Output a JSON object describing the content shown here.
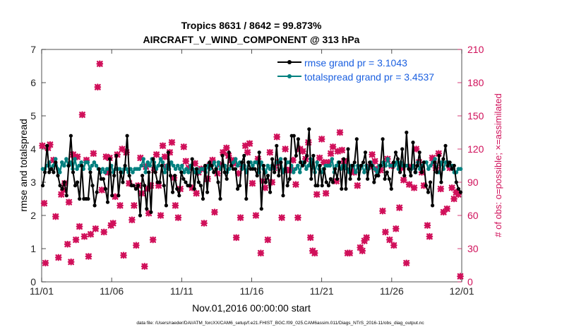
{
  "chart_data": {
    "type": "line",
    "title_line1": "Tropics 8631 / 8642 = 99.873%",
    "title_line2": "AIRCRAFT_V_WIND_COMPONENT @ 313 hPa",
    "xlabel": "Nov.01,2016 00:00:00 start",
    "ylabel_left": "rmse and totalspread",
    "ylabel_right": "# of obs: o=possible; ×=assimilated",
    "footer": "data file: /Users/raeder/DAI/ATM_forcXX/CAM6_setup/f.e21.FHIST_BGC.f09_025.CAM6assim.011/Diags_NTrS_2016-11/obs_diag_output.nc",
    "x_tick_labels": [
      "11/01",
      "11/06",
      "11/11",
      "11/16",
      "11/21",
      "11/26",
      "12/01"
    ],
    "x_tick_days": [
      0,
      5,
      10,
      15,
      20,
      25,
      30
    ],
    "xlim_days": [
      0,
      30
    ],
    "ylim_left": [
      0,
      7
    ],
    "y_left_ticks": [
      0,
      1,
      2,
      3,
      4,
      5,
      6,
      7
    ],
    "ylim_right": [
      0,
      210
    ],
    "y_right_ticks": [
      0,
      30,
      60,
      90,
      120,
      150,
      180,
      210
    ],
    "colors": {
      "rmse": "#000000",
      "spread": "#00807f",
      "obs": "#d0105a",
      "legend_text": "#1a5fe0"
    },
    "series": [
      {
        "name": "rmse grand pr = 3.1043",
        "axis": "left",
        "values": [
          2.9,
          3.3,
          4.1,
          3.3,
          3.4,
          3.3,
          3.6,
          3.2,
          2.9,
          2.8,
          3.0,
          2.6,
          3.5,
          4.4,
          3.3,
          2.9,
          3.0,
          2.5,
          3.5,
          2.5,
          2.5,
          2.5,
          3.3,
          2.9,
          2.3,
          2.7,
          3.4,
          3.1,
          3.1,
          2.8,
          2.4,
          3.7,
          2.6,
          3.2,
          3.8,
          2.6,
          3.3,
          3.0,
          3.5,
          4.4,
          3.2,
          2.9,
          2.9,
          2.8,
          2.9,
          2.0,
          3.2,
          2.9,
          2.2,
          3.3,
          2.1,
          3.7,
          3.3,
          3.0,
          3.0,
          3.5,
          2.9,
          2.3,
          3.9,
          3.2,
          2.7,
          3.2,
          2.8,
          2.6,
          3.3,
          3.1,
          3.0,
          2.9,
          2.9,
          3.7,
          2.8,
          3.4,
          3.0,
          2.9,
          2.5,
          3.5,
          2.7,
          3.6,
          3.5,
          3.3,
          3.4,
          3.0,
          2.5,
          3.8,
          3.3,
          3.1,
          3.9,
          3.5,
          3.4,
          3.4,
          2.8,
          2.9,
          3.6,
          3.8,
          2.5,
          3.6,
          3.4,
          3.4,
          3.4,
          3.2,
          3.9,
          2.2,
          3.5,
          3.0,
          3.2,
          2.7,
          3.7,
          3.3,
          4.1,
          3.2,
          3.6,
          2.6,
          3.7,
          2.9,
          3.1,
          4.4,
          4.4,
          3.8,
          4.3,
          3.6,
          3.5,
          3.6,
          3.8,
          4.6,
          3.1,
          3.8,
          2.9,
          2.9,
          3.5,
          2.9,
          3.4,
          3.0,
          2.9,
          3.1,
          3.0,
          3.4,
          3.1,
          3.6,
          2.8,
          3.7,
          2.8,
          4.0,
          3.1,
          3.5,
          3.6,
          4.3,
          3.1,
          3.5,
          3.6,
          3.9,
          3.1,
          3.6,
          3.5,
          3.0,
          3.2,
          3.2,
          3.5,
          4.3,
          3.1,
          3.3,
          3.1,
          2.8,
          3.6,
          3.9,
          3.7,
          3.3,
          4.0,
          3.2,
          4.5,
          3.4,
          3.2,
          4.2,
          3.3,
          3.5,
          3.9,
          3.3,
          3.6,
          2.9,
          2.7,
          3.0,
          2.3,
          3.6,
          3.3,
          3.8,
          3.0,
          3.7,
          4.1,
          3.5,
          3.6,
          3.4,
          3.5,
          3.0,
          2.8,
          2.7
        ]
      },
      {
        "name": "totalspread grand pr = 3.4537",
        "axis": "left",
        "values": [
          3.4,
          3.4,
          3.5,
          3.6,
          3.4,
          3.5,
          3.7,
          3.4,
          3.3,
          3.6,
          3.5,
          3.7,
          3.5,
          3.6,
          3.4,
          3.7,
          3.4,
          3.5,
          3.6,
          3.4,
          3.6,
          3.6,
          3.4,
          3.5,
          3.6,
          3.5,
          3.4,
          3.3,
          3.4,
          3.3,
          3.4,
          3.4,
          3.5,
          3.3,
          3.4,
          3.4,
          3.4,
          3.3,
          3.4,
          3.4,
          3.3,
          3.4,
          3.3,
          3.4,
          3.4,
          3.4,
          3.5,
          3.7,
          3.3,
          3.6,
          3.5,
          3.7,
          3.6,
          3.4,
          3.5,
          3.7,
          3.6,
          3.3,
          3.5,
          3.4,
          3.6,
          3.5,
          3.4,
          3.5,
          3.4,
          3.5,
          3.3,
          3.4,
          3.3,
          3.5,
          3.4,
          3.3,
          3.4,
          3.3,
          3.4,
          3.4,
          3.3,
          3.5,
          3.4,
          3.5,
          3.6,
          3.4,
          3.6,
          3.4,
          3.5,
          3.5,
          3.3,
          3.4,
          3.5,
          3.6,
          3.7,
          3.5,
          3.6,
          3.4,
          3.5,
          3.3,
          3.6,
          3.6,
          3.5,
          3.6,
          3.6,
          3.3,
          3.6,
          3.4,
          3.3,
          3.5,
          3.4,
          3.5,
          3.4,
          3.6,
          3.6,
          3.7,
          3.3,
          3.4,
          3.6,
          3.6,
          3.5,
          3.3,
          3.4,
          3.5,
          3.3,
          3.6,
          3.6,
          3.4,
          3.5,
          3.7,
          3.5,
          3.3,
          3.6,
          3.4,
          3.3,
          3.4,
          3.5,
          3.5,
          3.5,
          3.7,
          3.3,
          3.5,
          3.6,
          3.4,
          3.5,
          3.5,
          3.4,
          3.3,
          3.5,
          3.5,
          3.3,
          3.5,
          3.4,
          3.5,
          3.3,
          3.5,
          3.4,
          3.6,
          3.5,
          3.4,
          3.3,
          3.5,
          3.5,
          3.6,
          3.5,
          3.7,
          3.5,
          3.5,
          3.5,
          3.6,
          3.4,
          3.6,
          3.5,
          3.5,
          3.5,
          3.4,
          3.4,
          3.5,
          3.3,
          3.6,
          3.4,
          3.5,
          3.6,
          3.6,
          3.4,
          3.5,
          3.6,
          3.7,
          3.3,
          3.3,
          3.6,
          3.4,
          3.6,
          3.6,
          3.5,
          3.5,
          3.3,
          3.3,
          3.4,
          3.4
        ]
      }
    ],
    "obs_assimilated": {
      "name": "# of obs assimilated",
      "axis": "right",
      "points": [
        [
          0.05,
          123
        ],
        [
          0.18,
          71
        ],
        [
          0.27,
          17
        ],
        [
          0.45,
          121
        ],
        [
          0.6,
          124
        ],
        [
          0.85,
          110
        ],
        [
          1.0,
          59
        ],
        [
          1.2,
          22
        ],
        [
          1.4,
          79
        ],
        [
          1.55,
          83
        ],
        [
          1.65,
          89
        ],
        [
          1.85,
          34
        ],
        [
          1.95,
          72
        ],
        [
          2.1,
          18
        ],
        [
          2.25,
          115
        ],
        [
          2.45,
          38
        ],
        [
          2.55,
          113
        ],
        [
          2.7,
          50
        ],
        [
          2.9,
          151
        ],
        [
          3.05,
          41
        ],
        [
          3.2,
          110
        ],
        [
          3.35,
          23
        ],
        [
          3.5,
          43
        ],
        [
          3.7,
          116
        ],
        [
          3.85,
          48
        ],
        [
          4.0,
          176
        ],
        [
          4.15,
          197
        ],
        [
          4.3,
          83
        ],
        [
          4.45,
          45
        ],
        [
          4.6,
          113
        ],
        [
          4.75,
          99
        ],
        [
          4.85,
          112
        ],
        [
          4.95,
          51
        ],
        [
          5.1,
          53
        ],
        [
          5.25,
          77
        ],
        [
          5.4,
          115
        ],
        [
          5.6,
          69
        ],
        [
          5.75,
          120
        ],
        [
          5.85,
          24
        ],
        [
          6.05,
          117
        ],
        [
          6.25,
          89
        ],
        [
          6.45,
          56
        ],
        [
          6.6,
          69
        ],
        [
          6.75,
          33
        ],
        [
          6.9,
          87
        ],
        [
          7.05,
          112
        ],
        [
          7.15,
          80
        ],
        [
          7.35,
          14
        ],
        [
          7.45,
          104
        ],
        [
          7.55,
          84
        ],
        [
          7.65,
          62
        ],
        [
          7.8,
          87
        ],
        [
          7.95,
          38
        ],
        [
          8.05,
          101
        ],
        [
          8.2,
          115
        ],
        [
          8.35,
          87
        ],
        [
          8.5,
          60
        ],
        [
          8.65,
          123
        ],
        [
          8.8,
          113
        ],
        [
          8.95,
          104
        ],
        [
          9.15,
          117
        ],
        [
          9.3,
          126
        ],
        [
          9.45,
          94
        ],
        [
          9.55,
          69
        ],
        [
          9.75,
          58
        ],
        [
          9.9,
          84
        ],
        [
          10.15,
          122
        ],
        [
          10.3,
          109
        ],
        [
          10.5,
          103
        ],
        [
          10.75,
          85
        ],
        [
          10.95,
          107
        ],
        [
          11.05,
          80
        ],
        [
          11.2,
          99
        ],
        [
          11.4,
          102
        ],
        [
          11.6,
          53
        ],
        [
          11.85,
          93
        ],
        [
          12.0,
          105
        ],
        [
          12.2,
          110
        ],
        [
          12.35,
          63
        ],
        [
          12.55,
          98
        ],
        [
          12.75,
          106
        ],
        [
          12.95,
          117
        ],
        [
          13.2,
          121
        ],
        [
          13.35,
          114
        ],
        [
          13.55,
          110
        ],
        [
          13.7,
          107
        ],
        [
          13.9,
          40
        ],
        [
          14.05,
          98
        ],
        [
          14.2,
          58
        ],
        [
          14.35,
          104
        ],
        [
          14.55,
          123
        ],
        [
          14.7,
          117
        ],
        [
          14.85,
          125
        ],
        [
          15.05,
          89
        ],
        [
          15.3,
          60
        ],
        [
          15.45,
          111
        ],
        [
          15.65,
          26
        ],
        [
          15.8,
          91
        ],
        [
          15.95,
          85
        ],
        [
          16.15,
          38
        ],
        [
          16.3,
          117
        ],
        [
          16.45,
          90
        ],
        [
          16.6,
          103
        ],
        [
          16.8,
          131
        ],
        [
          16.95,
          108
        ],
        [
          17.15,
          58
        ],
        [
          17.4,
          120
        ],
        [
          17.55,
          101
        ],
        [
          17.8,
          101
        ],
        [
          17.95,
          110
        ],
        [
          18.15,
          88
        ],
        [
          18.3,
          58
        ],
        [
          18.45,
          120
        ],
        [
          18.65,
          118
        ],
        [
          18.85,
          111
        ],
        [
          19.05,
          126
        ],
        [
          19.2,
          40
        ],
        [
          19.35,
          28
        ],
        [
          19.5,
          26
        ],
        [
          19.65,
          79
        ],
        [
          19.85,
          112
        ],
        [
          20.0,
          129
        ],
        [
          20.15,
          108
        ],
        [
          20.3,
          80
        ],
        [
          20.5,
          108
        ],
        [
          20.65,
          116
        ],
        [
          20.8,
          122
        ],
        [
          21.05,
          91
        ],
        [
          21.15,
          118
        ],
        [
          21.3,
          135
        ],
        [
          21.45,
          119
        ],
        [
          21.6,
          109
        ],
        [
          21.85,
          26
        ],
        [
          22.0,
          26
        ],
        [
          22.15,
          101
        ],
        [
          22.3,
          99
        ],
        [
          22.55,
          87
        ],
        [
          22.75,
          31
        ],
        [
          22.9,
          28
        ],
        [
          23.05,
          37
        ],
        [
          23.2,
          40
        ],
        [
          23.45,
          104
        ],
        [
          23.6,
          115
        ],
        [
          23.8,
          109
        ],
        [
          23.95,
          102
        ],
        [
          24.2,
          101
        ],
        [
          24.35,
          64
        ],
        [
          24.55,
          45
        ],
        [
          24.7,
          111
        ],
        [
          24.85,
          38
        ],
        [
          25.0,
          105
        ],
        [
          25.15,
          33
        ],
        [
          25.3,
          48
        ],
        [
          25.55,
          67
        ],
        [
          25.7,
          103
        ],
        [
          25.85,
          92
        ],
        [
          26.05,
          17
        ],
        [
          26.25,
          88
        ],
        [
          26.4,
          104
        ],
        [
          26.6,
          85
        ],
        [
          26.75,
          120
        ],
        [
          26.95,
          108
        ],
        [
          27.15,
          99
        ],
        [
          27.3,
          87
        ],
        [
          27.55,
          51
        ],
        [
          27.7,
          41
        ],
        [
          27.9,
          112
        ],
        [
          28.0,
          107
        ],
        [
          28.15,
          103
        ],
        [
          28.35,
          116
        ],
        [
          28.5,
          84
        ],
        [
          28.7,
          63
        ],
        [
          28.95,
          66
        ],
        [
          29.15,
          103
        ],
        [
          29.3,
          85
        ],
        [
          29.45,
          75
        ],
        [
          29.6,
          81
        ],
        [
          29.75,
          79
        ],
        [
          29.9,
          5
        ]
      ]
    }
  }
}
